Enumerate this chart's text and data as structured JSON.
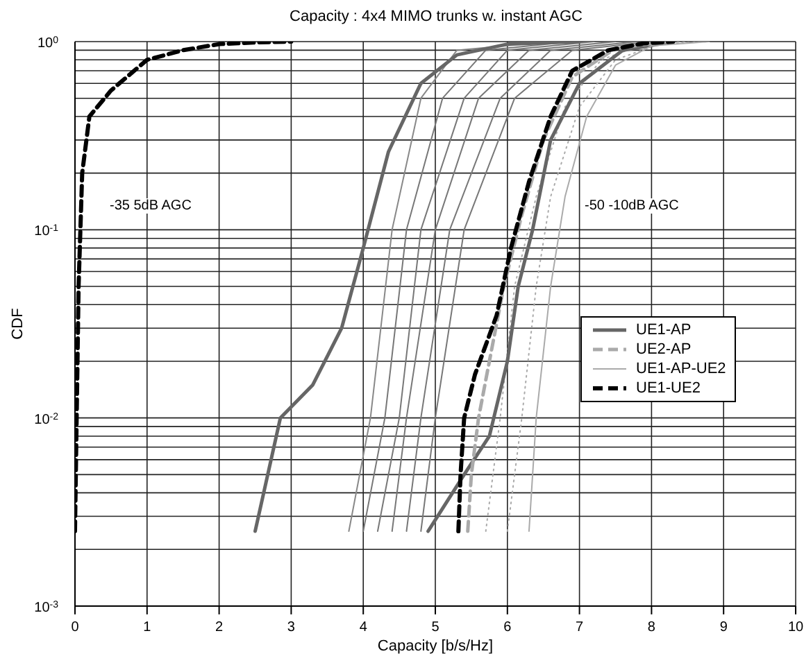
{
  "chart_data": {
    "type": "line",
    "title": "Capacity : 4x4 MIMO trunks w. instant AGC",
    "xlabel": "Capacity [b/s/Hz]",
    "ylabel": "CDF",
    "log": "y",
    "grid": true,
    "legend": "right",
    "marker": "none",
    "xlim": [
      0,
      10
    ],
    "xticks": [
      0,
      1,
      2,
      3,
      4,
      5,
      6,
      7,
      8,
      9,
      10
    ],
    "ylim": [
      0.001,
      1
    ],
    "yticks": [
      {
        "value": 0.001,
        "label": "10$^{-3}$"
      },
      {
        "value": 0.002,
        "label": null
      },
      {
        "value": 0.003,
        "label": null
      },
      {
        "value": 0.004,
        "label": null
      },
      {
        "value": 0.005,
        "label": null
      },
      {
        "value": 0.006,
        "label": null
      },
      {
        "value": 0.007,
        "label": null
      },
      {
        "value": 0.008,
        "label": null
      },
      {
        "value": 0.009,
        "label": null
      },
      {
        "value": 0.01,
        "label": "10$^{-2}$"
      },
      {
        "value": 0.02,
        "label": null
      },
      {
        "value": 0.03,
        "label": null
      },
      {
        "value": 0.04,
        "label": null
      },
      {
        "value": 0.05,
        "label": null
      },
      {
        "value": 0.06,
        "label": null
      },
      {
        "value": 0.07,
        "label": null
      },
      {
        "value": 0.08,
        "label": null
      },
      {
        "value": 0.09,
        "label": null
      },
      {
        "value": 0.1,
        "label": "10$^{-1}$"
      },
      {
        "value": 0.2,
        "label": null
      },
      {
        "value": 0.3,
        "label": null
      },
      {
        "value": 0.4,
        "label": null
      },
      {
        "value": 0.5,
        "label": null
      },
      {
        "value": 0.6,
        "label": null
      },
      {
        "value": 0.7,
        "label": null
      },
      {
        "value": 0.8,
        "label": null
      },
      {
        "value": 0.9,
        "label": null
      },
      {
        "value": 1,
        "label": "10$^{0}$"
      }
    ],
    "annotations": [
      "-35 5dB AGC",
      "-50 -10dB AGC"
    ],
    "series": [
      {
        "color": "#888888",
        "line_style": "solid",
        "x": [
          3.8,
          4.1,
          4.4,
          4.8,
          5.3,
          6.6
        ],
        "values": [
          0.0025,
          0.01,
          0.1,
          0.5,
          0.9,
          1
        ]
      },
      {
        "color": "#777777",
        "line_style": "solid",
        "x": [
          4.0,
          4.3,
          4.6,
          5.1,
          5.7,
          6.9
        ],
        "values": [
          0.0025,
          0.01,
          0.1,
          0.5,
          0.9,
          1
        ]
      },
      {
        "color": "#777777",
        "line_style": "solid",
        "x": [
          4.2,
          4.5,
          4.8,
          5.4,
          6.0,
          7.2
        ],
        "values": [
          0.0025,
          0.01,
          0.1,
          0.5,
          0.9,
          1
        ]
      },
      {
        "color": "#777777",
        "line_style": "solid",
        "x": [
          4.4,
          4.6,
          5.0,
          5.6,
          6.3,
          7.5
        ],
        "values": [
          0.0025,
          0.01,
          0.1,
          0.5,
          0.9,
          1
        ]
      },
      {
        "color": "#777777",
        "line_style": "solid",
        "x": [
          4.6,
          4.8,
          5.2,
          5.9,
          6.6,
          7.8
        ],
        "values": [
          0.0025,
          0.01,
          0.1,
          0.5,
          0.9,
          1
        ]
      },
      {
        "color": "#777777",
        "line_style": "solid",
        "x": [
          4.8,
          5.0,
          5.4,
          6.1,
          6.9,
          8.0
        ],
        "values": [
          0.0025,
          0.01,
          0.1,
          0.5,
          0.9,
          1
        ]
      },
      {
        "color": "#aaaaaa",
        "line_style": "dotted",
        "x": [
          5.7,
          5.9,
          6.1,
          6.4,
          6.8,
          7.3,
          7.9,
          8.5
        ],
        "values": [
          0.0025,
          0.01,
          0.05,
          0.15,
          0.45,
          0.8,
          0.97,
          1
        ]
      },
      {
        "color": "#aaaaaa",
        "line_style": "dotted",
        "x": [
          6.0,
          6.2,
          6.4,
          6.6,
          7.0,
          7.5,
          8.1,
          8.8
        ],
        "values": [
          0.0025,
          0.01,
          0.05,
          0.15,
          0.45,
          0.8,
          0.97,
          1
        ]
      },
      {
        "name": "UE1-AP",
        "color": "#666666",
        "line_style": "solid",
        "x": [
          2.5,
          2.85,
          3.3,
          3.7,
          4.0,
          4.35,
          4.8,
          5.3,
          6.0,
          7.0
        ],
        "values": [
          0.0025,
          0.01,
          0.015,
          0.03,
          0.08,
          0.26,
          0.6,
          0.85,
          0.97,
          1
        ]
      },
      {
        "color": "#666666",
        "line_style": "solid",
        "x": [
          4.9,
          5.4,
          5.75,
          6.0,
          6.15,
          6.35,
          6.6,
          7.0,
          7.6,
          8.3
        ],
        "values": [
          0.0025,
          0.005,
          0.008,
          0.02,
          0.05,
          0.1,
          0.3,
          0.6,
          0.9,
          1
        ]
      },
      {
        "name": "UE2-AP",
        "color": "#aaaaaa",
        "line_style": "dashed",
        "x": [
          5.45,
          5.5,
          5.6,
          5.75,
          5.95,
          6.2,
          6.5,
          6.9,
          7.5,
          8.2
        ],
        "values": [
          0.0025,
          0.005,
          0.01,
          0.02,
          0.05,
          0.12,
          0.3,
          0.65,
          0.92,
          1
        ]
      },
      {
        "name": "UE1-AP-UE2",
        "color": "#aaaaaa",
        "line_style": "solid",
        "x": [
          6.3,
          6.4,
          6.6,
          6.8,
          7.1,
          7.5,
          8.0,
          8.8
        ],
        "values": [
          0.0025,
          0.01,
          0.05,
          0.15,
          0.4,
          0.75,
          0.95,
          1
        ]
      },
      {
        "name": "UE1-UE2",
        "color": "#000000",
        "line_style": "dashed",
        "x": [
          0,
          0.05,
          0.1,
          0.2,
          0.5,
          1,
          1.5,
          2,
          2.5,
          3
        ],
        "values": [
          0.0025,
          0.05,
          0.2,
          0.4,
          0.55,
          0.8,
          0.9,
          0.97,
          0.99,
          1
        ]
      },
      {
        "color": "#000000",
        "line_style": "dashed",
        "x": [
          5.32,
          5.35,
          5.4,
          5.55,
          5.85,
          6.05,
          6.3,
          6.6,
          6.9,
          7.4,
          7.9,
          8.3
        ],
        "values": [
          0.0025,
          0.005,
          0.01,
          0.017,
          0.035,
          0.08,
          0.18,
          0.4,
          0.7,
          0.9,
          0.98,
          1
        ]
      }
    ]
  }
}
